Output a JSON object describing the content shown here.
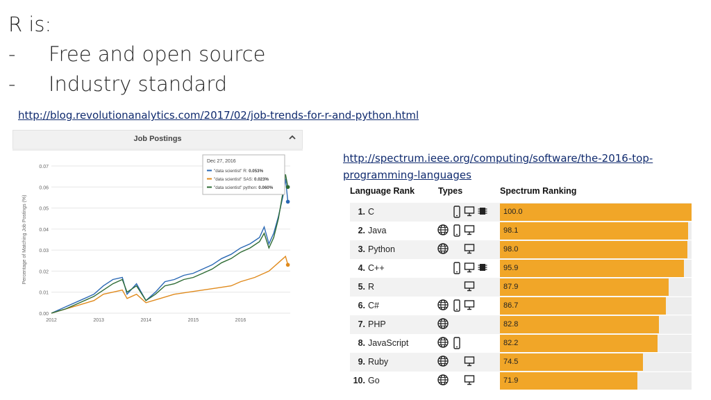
{
  "slide": {
    "title_lines": [
      "R is:",
      "Free and open source",
      "Industry standard"
    ],
    "bullet_marker": "-"
  },
  "links": {
    "job_trends": "http://blog.revolutionanalytics.com/2017/02/job-trends-for-r-and-python.html",
    "spectrum_line1": "http://spectrum.ieee.org/computing/software/the-2016-top-",
    "spectrum_line2": "programming-languages"
  },
  "job_panel": {
    "title": "Job Postings",
    "collapse_icon": "chevron-up-icon",
    "tooltip": {
      "date": "Dec 27, 2016",
      "entries": [
        {
          "label": "\"data scientist\" R:",
          "value": "0.053%",
          "color": "#2a68b4"
        },
        {
          "label": "\"data scientist\" SAS:",
          "value": "0.023%",
          "color": "#e08a1c"
        },
        {
          "label": "\"data scientist\" python:",
          "value": "0.060%",
          "color": "#2e6b34"
        }
      ]
    }
  },
  "chart_data": {
    "type": "line",
    "title": "Job Postings",
    "xlabel": "",
    "ylabel": "Percentage of Matching Job Postings (%)",
    "xlim": [
      2012,
      2017.05
    ],
    "ylim": [
      0,
      0.07
    ],
    "x_ticks": [
      "2012",
      "2013",
      "2014",
      "2015",
      "2016"
    ],
    "y_ticks": [
      "0.00",
      "0.01",
      "0.02",
      "0.03",
      "0.04",
      "0.05",
      "0.06",
      "0.07"
    ],
    "grid": true,
    "series": [
      {
        "name": "\"data scientist\" R",
        "color": "#2a68b4",
        "x": [
          2012.0,
          2012.3,
          2012.6,
          2012.9,
          2013.1,
          2013.3,
          2013.5,
          2013.6,
          2013.8,
          2014.0,
          2014.2,
          2014.4,
          2014.6,
          2014.8,
          2015.0,
          2015.2,
          2015.4,
          2015.6,
          2015.8,
          2016.0,
          2016.2,
          2016.4,
          2016.5,
          2016.6,
          2016.7,
          2016.8,
          2016.9,
          2016.95,
          2017.0
        ],
        "y": [
          0.0,
          0.003,
          0.006,
          0.009,
          0.013,
          0.016,
          0.017,
          0.009,
          0.014,
          0.006,
          0.01,
          0.015,
          0.016,
          0.018,
          0.019,
          0.021,
          0.023,
          0.026,
          0.028,
          0.031,
          0.033,
          0.036,
          0.041,
          0.033,
          0.038,
          0.046,
          0.056,
          0.064,
          0.053
        ]
      },
      {
        "name": "\"data scientist\" SAS",
        "color": "#e08a1c",
        "x": [
          2012.0,
          2012.3,
          2012.6,
          2012.9,
          2013.1,
          2013.3,
          2013.5,
          2013.6,
          2013.8,
          2014.0,
          2014.3,
          2014.6,
          2014.9,
          2015.2,
          2015.5,
          2015.8,
          2016.0,
          2016.3,
          2016.6,
          2016.8,
          2016.95,
          2017.0
        ],
        "y": [
          0.0,
          0.002,
          0.004,
          0.006,
          0.009,
          0.01,
          0.011,
          0.007,
          0.009,
          0.005,
          0.007,
          0.009,
          0.01,
          0.011,
          0.012,
          0.013,
          0.015,
          0.017,
          0.02,
          0.024,
          0.027,
          0.023
        ]
      },
      {
        "name": "\"data scientist\" python",
        "color": "#2e6b34",
        "x": [
          2012.0,
          2012.3,
          2012.6,
          2012.9,
          2013.1,
          2013.3,
          2013.5,
          2013.6,
          2013.8,
          2014.0,
          2014.2,
          2014.4,
          2014.6,
          2014.8,
          2015.0,
          2015.2,
          2015.4,
          2015.6,
          2015.8,
          2016.0,
          2016.2,
          2016.4,
          2016.5,
          2016.6,
          2016.7,
          2016.8,
          2016.9,
          2016.95,
          2017.0
        ],
        "y": [
          0.0,
          0.002,
          0.005,
          0.008,
          0.011,
          0.014,
          0.016,
          0.01,
          0.013,
          0.006,
          0.009,
          0.013,
          0.014,
          0.016,
          0.017,
          0.019,
          0.021,
          0.024,
          0.026,
          0.029,
          0.031,
          0.034,
          0.038,
          0.031,
          0.036,
          0.045,
          0.058,
          0.066,
          0.06
        ]
      }
    ]
  },
  "ranking": {
    "headers": {
      "rank": "Language Rank",
      "types": "Types",
      "score": "Spectrum Ranking"
    },
    "max_score": 100,
    "bar_color": "#f1a628",
    "rows": [
      {
        "rank": "1.",
        "name": "C",
        "types": [
          "mobile",
          "desktop",
          "embedded"
        ],
        "score": "100.0",
        "value": 100.0
      },
      {
        "rank": "2.",
        "name": "Java",
        "types": [
          "web",
          "mobile",
          "desktop"
        ],
        "score": "98.1",
        "value": 98.1
      },
      {
        "rank": "3.",
        "name": "Python",
        "types": [
          "web",
          "desktop"
        ],
        "score": "98.0",
        "value": 98.0
      },
      {
        "rank": "4.",
        "name": "C++",
        "types": [
          "mobile",
          "desktop",
          "embedded"
        ],
        "score": "95.9",
        "value": 95.9
      },
      {
        "rank": "5.",
        "name": "R",
        "types": [
          "desktop"
        ],
        "score": "87.9",
        "value": 87.9
      },
      {
        "rank": "6.",
        "name": "C#",
        "types": [
          "web",
          "mobile",
          "desktop"
        ],
        "score": "86.7",
        "value": 86.7
      },
      {
        "rank": "7.",
        "name": "PHP",
        "types": [
          "web"
        ],
        "score": "82.8",
        "value": 82.8
      },
      {
        "rank": "8.",
        "name": "JavaScript",
        "types": [
          "web",
          "mobile"
        ],
        "score": "82.2",
        "value": 82.2
      },
      {
        "rank": "9.",
        "name": "Ruby",
        "types": [
          "web",
          "desktop"
        ],
        "score": "74.5",
        "value": 74.5
      },
      {
        "rank": "10.",
        "name": "Go",
        "types": [
          "web",
          "desktop"
        ],
        "score": "71.9",
        "value": 71.9
      }
    ]
  }
}
